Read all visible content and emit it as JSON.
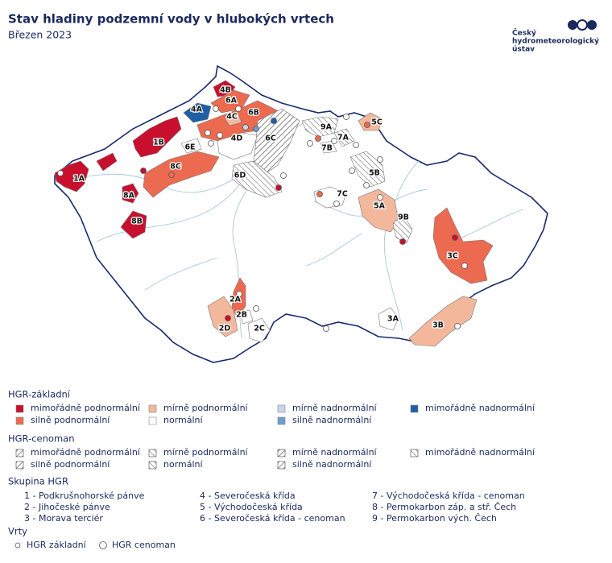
{
  "header": {
    "title": "Stav hladiny podzemní vody v hlubokých vrtech",
    "subtitle": "Březen 2023",
    "logo": [
      "Český",
      "hydrometeorologický",
      "ústav"
    ]
  },
  "map": {
    "regions": [
      "1A",
      "1B",
      "8A",
      "8B",
      "8C",
      "4A",
      "4B",
      "6A",
      "6B",
      "4C",
      "4D",
      "6C",
      "6D",
      "6E",
      "5C",
      "9A",
      "7A",
      "7B",
      "5B",
      "7C",
      "5A",
      "9B",
      "3C",
      "2A",
      "2B",
      "2C",
      "2D",
      "3A",
      "3B"
    ]
  },
  "legend": {
    "zakladni": {
      "title": "HGR-základní",
      "items": [
        "mimořádně podnormální",
        "mírně podnormální",
        "mírně nadnormální",
        "mimořádně nadnormální",
        "silně podnormální",
        "normální",
        "silně nadnormální"
      ]
    },
    "cenoman": {
      "title": "HGR-cenoman",
      "items": [
        "mimořádně podnormální",
        "mírně podnormální",
        "mírně nadnormální",
        "mimořádně nadnormální",
        "silně podnormální",
        "normální",
        "silně nadnormální"
      ]
    },
    "skupiny": {
      "title": "Skupina HGR",
      "items": [
        "1 - Podkrušnohorské pánve",
        "4 - Severočeská křída",
        "7 - Východočeská křída - cenoman",
        "2 - Jihočeské pánve",
        "5 - Východočeská křída",
        "8 - Permokarbon záp. a stř. Čech",
        "3 - Morava terciér",
        "6 - Severočeská křída - cenoman",
        "9 - Permokarbon vých. Čech"
      ]
    },
    "vrty": {
      "title": "Vrty",
      "items": [
        "HGR základní",
        "HGR cenoman"
      ]
    }
  }
}
